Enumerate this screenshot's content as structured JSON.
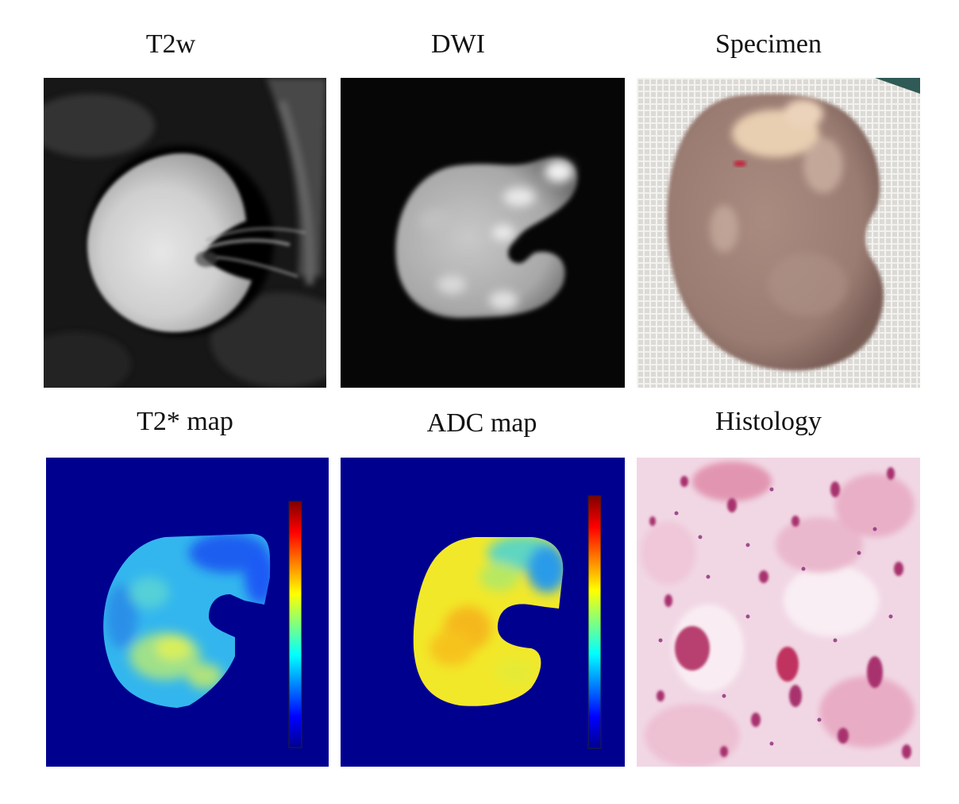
{
  "panels": [
    {
      "id": "t2w",
      "title": "T2w"
    },
    {
      "id": "dwi",
      "title": "DWI"
    },
    {
      "id": "specimen",
      "title": "Specimen"
    },
    {
      "id": "t2star",
      "title": "T2* map"
    },
    {
      "id": "adc",
      "title": "ADC map"
    },
    {
      "id": "histology",
      "title": "Histology"
    }
  ],
  "colors": {
    "map_background": "#00008f",
    "mri_background": "#0e0e0e",
    "specimen_tissue": "#9e8278",
    "gauze": "#e8e6e2",
    "histology_background": "#f4dfe9",
    "stain_nuclei": "#b03a7a"
  },
  "colormap": "jet"
}
